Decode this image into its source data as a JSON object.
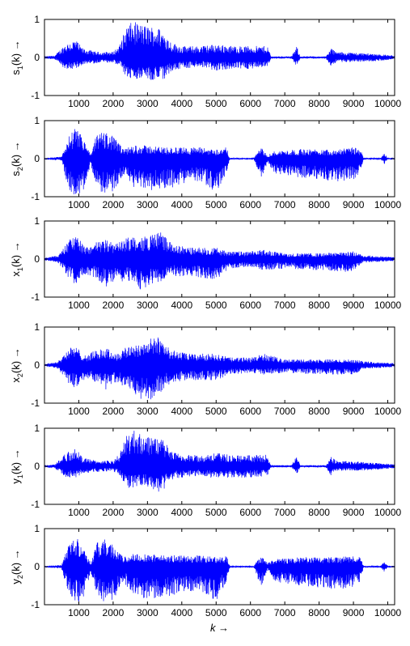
{
  "chart_data": [
    {
      "type": "line",
      "ylabel": "s1(k) →",
      "ylabel_base": "s",
      "ylabel_sub": "1",
      "ylabel_rest": "(k) →",
      "xlim": [
        0,
        10200
      ],
      "ylim": [
        -1,
        1
      ],
      "xticks": [
        1000,
        2000,
        3000,
        4000,
        5000,
        6000,
        7000,
        8000,
        9000,
        10000
      ],
      "xtick_labels": [
        "1000",
        "2000",
        "3000",
        "4000",
        "5000",
        "6000",
        "7000",
        "8000",
        "9000",
        "10000"
      ],
      "yticks": [
        -1,
        0,
        1
      ],
      "ytick_labels": [
        "-1",
        "0",
        "1"
      ],
      "grid": false,
      "color": "#0000ff",
      "envelope": [
        {
          "k": 0,
          "up": 0.03,
          "lo": -0.03
        },
        {
          "k": 300,
          "up": 0.05,
          "lo": -0.05
        },
        {
          "k": 600,
          "up": 0.35,
          "lo": -0.3
        },
        {
          "k": 900,
          "up": 0.48,
          "lo": -0.3
        },
        {
          "k": 1100,
          "up": 0.25,
          "lo": -0.2
        },
        {
          "k": 1500,
          "up": 0.15,
          "lo": -0.15
        },
        {
          "k": 2000,
          "up": 0.15,
          "lo": -0.13
        },
        {
          "k": 2200,
          "up": 0.35,
          "lo": -0.25
        },
        {
          "k": 2400,
          "up": 0.85,
          "lo": -0.55
        },
        {
          "k": 2600,
          "up": 0.95,
          "lo": -0.6
        },
        {
          "k": 2900,
          "up": 0.85,
          "lo": -0.5
        },
        {
          "k": 3300,
          "up": 0.8,
          "lo": -0.7
        },
        {
          "k": 3500,
          "up": 0.65,
          "lo": -0.6
        },
        {
          "k": 3700,
          "up": 0.4,
          "lo": -0.35
        },
        {
          "k": 4000,
          "up": 0.3,
          "lo": -0.3
        },
        {
          "k": 4500,
          "up": 0.3,
          "lo": -0.25
        },
        {
          "k": 5000,
          "up": 0.35,
          "lo": -0.35
        },
        {
          "k": 5500,
          "up": 0.3,
          "lo": -0.3
        },
        {
          "k": 6000,
          "up": 0.3,
          "lo": -0.3
        },
        {
          "k": 6500,
          "up": 0.3,
          "lo": -0.25
        },
        {
          "k": 6600,
          "up": 0.03,
          "lo": -0.03
        },
        {
          "k": 7200,
          "up": 0.03,
          "lo": -0.03
        },
        {
          "k": 7350,
          "up": 0.3,
          "lo": -0.25
        },
        {
          "k": 7450,
          "up": 0.03,
          "lo": -0.03
        },
        {
          "k": 8200,
          "up": 0.03,
          "lo": -0.03
        },
        {
          "k": 8350,
          "up": 0.25,
          "lo": -0.25
        },
        {
          "k": 8500,
          "up": 0.15,
          "lo": -0.12
        },
        {
          "k": 9000,
          "up": 0.13,
          "lo": -0.12
        },
        {
          "k": 9600,
          "up": 0.1,
          "lo": -0.1
        },
        {
          "k": 10200,
          "up": 0.05,
          "lo": -0.05
        }
      ]
    },
    {
      "type": "line",
      "ylabel": "s2(k) →",
      "ylabel_base": "s",
      "ylabel_sub": "2",
      "ylabel_rest": "(k) →",
      "xlim": [
        0,
        10200
      ],
      "ylim": [
        -1,
        1
      ],
      "xticks": [
        1000,
        2000,
        3000,
        4000,
        5000,
        6000,
        7000,
        8000,
        9000,
        10000
      ],
      "xtick_labels": [
        "1000",
        "2000",
        "3000",
        "4000",
        "5000",
        "6000",
        "7000",
        "8000",
        "9000",
        "10000"
      ],
      "yticks": [
        -1,
        0,
        1
      ],
      "ytick_labels": [
        "-1",
        "0",
        "1"
      ],
      "grid": false,
      "color": "#0000ff",
      "envelope": [
        {
          "k": 0,
          "up": 0.02,
          "lo": -0.02
        },
        {
          "k": 500,
          "up": 0.05,
          "lo": -0.05
        },
        {
          "k": 700,
          "up": 0.6,
          "lo": -0.8
        },
        {
          "k": 900,
          "up": 0.8,
          "lo": -1.0
        },
        {
          "k": 1100,
          "up": 0.6,
          "lo": -0.95
        },
        {
          "k": 1350,
          "up": 0.1,
          "lo": -0.15
        },
        {
          "k": 1500,
          "up": 0.6,
          "lo": -0.7
        },
        {
          "k": 1700,
          "up": 0.75,
          "lo": -0.95
        },
        {
          "k": 2000,
          "up": 0.6,
          "lo": -0.9
        },
        {
          "k": 2300,
          "up": 0.25,
          "lo": -0.4
        },
        {
          "k": 2600,
          "up": 0.35,
          "lo": -0.75
        },
        {
          "k": 3000,
          "up": 0.35,
          "lo": -0.85
        },
        {
          "k": 3500,
          "up": 0.3,
          "lo": -0.8
        },
        {
          "k": 4000,
          "up": 0.3,
          "lo": -0.7
        },
        {
          "k": 4500,
          "up": 0.3,
          "lo": -0.6
        },
        {
          "k": 5000,
          "up": 0.25,
          "lo": -0.9
        },
        {
          "k": 5300,
          "up": 0.3,
          "lo": -0.4
        },
        {
          "k": 5400,
          "up": 0.02,
          "lo": -0.02
        },
        {
          "k": 6100,
          "up": 0.02,
          "lo": -0.02
        },
        {
          "k": 6300,
          "up": 0.3,
          "lo": -0.55
        },
        {
          "k": 6500,
          "up": 0.1,
          "lo": -0.1
        },
        {
          "k": 6700,
          "up": 0.2,
          "lo": -0.4
        },
        {
          "k": 7500,
          "up": 0.25,
          "lo": -0.5
        },
        {
          "k": 8500,
          "up": 0.25,
          "lo": -0.6
        },
        {
          "k": 9000,
          "up": 0.3,
          "lo": -0.55
        },
        {
          "k": 9200,
          "up": 0.25,
          "lo": -0.4
        },
        {
          "k": 9300,
          "up": 0.02,
          "lo": -0.02
        },
        {
          "k": 9800,
          "up": 0.02,
          "lo": -0.02
        },
        {
          "k": 9900,
          "up": 0.15,
          "lo": -0.15
        },
        {
          "k": 10000,
          "up": 0.02,
          "lo": -0.02
        },
        {
          "k": 10200,
          "up": 0.02,
          "lo": -0.02
        }
      ]
    },
    {
      "type": "line",
      "ylabel": "x1(k) →",
      "ylabel_base": "x",
      "ylabel_sub": "1",
      "ylabel_rest": "(k) →",
      "xlim": [
        0,
        10200
      ],
      "ylim": [
        -1,
        1
      ],
      "xticks": [
        1000,
        2000,
        3000,
        4000,
        5000,
        6000,
        7000,
        8000,
        9000,
        10000
      ],
      "xtick_labels": [
        "1000",
        "2000",
        "3000",
        "4000",
        "5000",
        "6000",
        "7000",
        "8000",
        "9000",
        "10000"
      ],
      "yticks": [
        -1,
        0,
        1
      ],
      "ytick_labels": [
        "-1",
        "0",
        "1"
      ],
      "grid": false,
      "color": "#0000ff",
      "envelope": [
        {
          "k": 0,
          "up": 0.03,
          "lo": -0.03
        },
        {
          "k": 400,
          "up": 0.1,
          "lo": -0.1
        },
        {
          "k": 700,
          "up": 0.5,
          "lo": -0.5
        },
        {
          "k": 900,
          "up": 0.65,
          "lo": -0.7
        },
        {
          "k": 1200,
          "up": 0.3,
          "lo": -0.4
        },
        {
          "k": 1500,
          "up": 0.45,
          "lo": -0.5
        },
        {
          "k": 1800,
          "up": 0.5,
          "lo": -0.75
        },
        {
          "k": 2100,
          "up": 0.4,
          "lo": -0.6
        },
        {
          "k": 2500,
          "up": 0.6,
          "lo": -0.6
        },
        {
          "k": 2800,
          "up": 0.55,
          "lo": -0.85
        },
        {
          "k": 3100,
          "up": 0.65,
          "lo": -0.7
        },
        {
          "k": 3400,
          "up": 0.75,
          "lo": -0.6
        },
        {
          "k": 3700,
          "up": 0.4,
          "lo": -0.45
        },
        {
          "k": 4200,
          "up": 0.3,
          "lo": -0.45
        },
        {
          "k": 5000,
          "up": 0.3,
          "lo": -0.55
        },
        {
          "k": 5400,
          "up": 0.2,
          "lo": -0.25
        },
        {
          "k": 6000,
          "up": 0.2,
          "lo": -0.2
        },
        {
          "k": 6400,
          "up": 0.25,
          "lo": -0.3
        },
        {
          "k": 7000,
          "up": 0.15,
          "lo": -0.25
        },
        {
          "k": 8000,
          "up": 0.15,
          "lo": -0.3
        },
        {
          "k": 9000,
          "up": 0.2,
          "lo": -0.35
        },
        {
          "k": 9300,
          "up": 0.1,
          "lo": -0.1
        },
        {
          "k": 10200,
          "up": 0.05,
          "lo": -0.05
        }
      ]
    },
    {
      "type": "line",
      "ylabel": "x2(k) →",
      "ylabel_base": "x",
      "ylabel_sub": "2",
      "ylabel_rest": "(k) →",
      "xlim": [
        0,
        10200
      ],
      "ylim": [
        -1,
        1
      ],
      "xticks": [
        1000,
        2000,
        3000,
        4000,
        5000,
        6000,
        7000,
        8000,
        9000,
        10000
      ],
      "xtick_labels": [
        "1000",
        "2000",
        "3000",
        "4000",
        "5000",
        "6000",
        "7000",
        "8000",
        "9000",
        "10000"
      ],
      "yticks": [
        -1,
        0,
        1
      ],
      "ytick_labels": [
        "-1",
        "0",
        "1"
      ],
      "grid": false,
      "color": "#0000ff",
      "envelope": [
        {
          "k": 0,
          "up": 0.03,
          "lo": -0.03
        },
        {
          "k": 400,
          "up": 0.1,
          "lo": -0.1
        },
        {
          "k": 700,
          "up": 0.45,
          "lo": -0.5
        },
        {
          "k": 900,
          "up": 0.5,
          "lo": -0.6
        },
        {
          "k": 1200,
          "up": 0.25,
          "lo": -0.35
        },
        {
          "k": 1500,
          "up": 0.4,
          "lo": -0.45
        },
        {
          "k": 1800,
          "up": 0.45,
          "lo": -0.65
        },
        {
          "k": 2100,
          "up": 0.3,
          "lo": -0.45
        },
        {
          "k": 2500,
          "up": 0.55,
          "lo": -0.65
        },
        {
          "k": 2800,
          "up": 0.6,
          "lo": -0.95
        },
        {
          "k": 3100,
          "up": 0.7,
          "lo": -0.9
        },
        {
          "k": 3400,
          "up": 0.75,
          "lo": -0.7
        },
        {
          "k": 3700,
          "up": 0.4,
          "lo": -0.45
        },
        {
          "k": 4200,
          "up": 0.3,
          "lo": -0.4
        },
        {
          "k": 5000,
          "up": 0.3,
          "lo": -0.4
        },
        {
          "k": 5400,
          "up": 0.2,
          "lo": -0.25
        },
        {
          "k": 6000,
          "up": 0.2,
          "lo": -0.2
        },
        {
          "k": 6400,
          "up": 0.3,
          "lo": -0.25
        },
        {
          "k": 7000,
          "up": 0.15,
          "lo": -0.2
        },
        {
          "k": 8000,
          "up": 0.15,
          "lo": -0.25
        },
        {
          "k": 9000,
          "up": 0.15,
          "lo": -0.25
        },
        {
          "k": 9300,
          "up": 0.1,
          "lo": -0.1
        },
        {
          "k": 10200,
          "up": 0.05,
          "lo": -0.05
        }
      ]
    },
    {
      "type": "line",
      "ylabel": "y1(k) →",
      "ylabel_base": "y",
      "ylabel_sub": "1",
      "ylabel_rest": "(k) →",
      "xlim": [
        0,
        10200
      ],
      "ylim": [
        -1,
        1
      ],
      "xticks": [
        1000,
        2000,
        3000,
        4000,
        5000,
        6000,
        7000,
        8000,
        9000,
        10000
      ],
      "xtick_labels": [
        "1000",
        "2000",
        "3000",
        "4000",
        "5000",
        "6000",
        "7000",
        "8000",
        "9000",
        "10000"
      ],
      "yticks": [
        -1,
        0,
        1
      ],
      "ytick_labels": [
        "-1",
        "0",
        "1"
      ],
      "grid": false,
      "color": "#0000ff",
      "envelope": [
        {
          "k": 0,
          "up": 0.03,
          "lo": -0.03
        },
        {
          "k": 300,
          "up": 0.05,
          "lo": -0.05
        },
        {
          "k": 600,
          "up": 0.35,
          "lo": -0.3
        },
        {
          "k": 900,
          "up": 0.48,
          "lo": -0.3
        },
        {
          "k": 1100,
          "up": 0.25,
          "lo": -0.2
        },
        {
          "k": 1500,
          "up": 0.15,
          "lo": -0.15
        },
        {
          "k": 2000,
          "up": 0.15,
          "lo": -0.13
        },
        {
          "k": 2200,
          "up": 0.35,
          "lo": -0.25
        },
        {
          "k": 2400,
          "up": 0.85,
          "lo": -0.55
        },
        {
          "k": 2600,
          "up": 0.95,
          "lo": -0.6
        },
        {
          "k": 2900,
          "up": 0.85,
          "lo": -0.5
        },
        {
          "k": 3300,
          "up": 0.8,
          "lo": -0.7
        },
        {
          "k": 3500,
          "up": 0.65,
          "lo": -0.6
        },
        {
          "k": 3700,
          "up": 0.4,
          "lo": -0.35
        },
        {
          "k": 4000,
          "up": 0.3,
          "lo": -0.3
        },
        {
          "k": 4500,
          "up": 0.3,
          "lo": -0.25
        },
        {
          "k": 5000,
          "up": 0.35,
          "lo": -0.35
        },
        {
          "k": 5500,
          "up": 0.3,
          "lo": -0.3
        },
        {
          "k": 6000,
          "up": 0.3,
          "lo": -0.3
        },
        {
          "k": 6500,
          "up": 0.3,
          "lo": -0.25
        },
        {
          "k": 6600,
          "up": 0.03,
          "lo": -0.03
        },
        {
          "k": 7200,
          "up": 0.03,
          "lo": -0.03
        },
        {
          "k": 7350,
          "up": 0.3,
          "lo": -0.25
        },
        {
          "k": 7450,
          "up": 0.03,
          "lo": -0.03
        },
        {
          "k": 8200,
          "up": 0.03,
          "lo": -0.03
        },
        {
          "k": 8350,
          "up": 0.25,
          "lo": -0.25
        },
        {
          "k": 8500,
          "up": 0.15,
          "lo": -0.12
        },
        {
          "k": 9000,
          "up": 0.13,
          "lo": -0.12
        },
        {
          "k": 9600,
          "up": 0.1,
          "lo": -0.1
        },
        {
          "k": 10200,
          "up": 0.05,
          "lo": -0.05
        }
      ]
    },
    {
      "type": "line",
      "ylabel": "y2(k) →",
      "ylabel_base": "y",
      "ylabel_sub": "2",
      "ylabel_rest": "(k) →",
      "xlabel": "k →",
      "xlim": [
        0,
        10200
      ],
      "ylim": [
        -1,
        1
      ],
      "xticks": [
        1000,
        2000,
        3000,
        4000,
        5000,
        6000,
        7000,
        8000,
        9000,
        10000
      ],
      "xtick_labels": [
        "1000",
        "2000",
        "3000",
        "4000",
        "5000",
        "6000",
        "7000",
        "8000",
        "9000",
        "10000"
      ],
      "yticks": [
        -1,
        0,
        1
      ],
      "ytick_labels": [
        "-1",
        "0",
        "1"
      ],
      "grid": false,
      "color": "#0000ff",
      "envelope": [
        {
          "k": 0,
          "up": 0.02,
          "lo": -0.02
        },
        {
          "k": 500,
          "up": 0.05,
          "lo": -0.05
        },
        {
          "k": 700,
          "up": 0.6,
          "lo": -0.8
        },
        {
          "k": 900,
          "up": 0.8,
          "lo": -1.0
        },
        {
          "k": 1100,
          "up": 0.6,
          "lo": -0.95
        },
        {
          "k": 1350,
          "up": 0.1,
          "lo": -0.15
        },
        {
          "k": 1500,
          "up": 0.6,
          "lo": -0.7
        },
        {
          "k": 1700,
          "up": 0.75,
          "lo": -0.95
        },
        {
          "k": 2000,
          "up": 0.6,
          "lo": -0.9
        },
        {
          "k": 2300,
          "up": 0.25,
          "lo": -0.4
        },
        {
          "k": 2600,
          "up": 0.35,
          "lo": -0.75
        },
        {
          "k": 3000,
          "up": 0.35,
          "lo": -0.85
        },
        {
          "k": 3500,
          "up": 0.3,
          "lo": -0.8
        },
        {
          "k": 4000,
          "up": 0.3,
          "lo": -0.7
        },
        {
          "k": 4500,
          "up": 0.3,
          "lo": -0.6
        },
        {
          "k": 5000,
          "up": 0.25,
          "lo": -0.9
        },
        {
          "k": 5300,
          "up": 0.3,
          "lo": -0.4
        },
        {
          "k": 5400,
          "up": 0.02,
          "lo": -0.02
        },
        {
          "k": 6100,
          "up": 0.02,
          "lo": -0.02
        },
        {
          "k": 6300,
          "up": 0.3,
          "lo": -0.55
        },
        {
          "k": 6500,
          "up": 0.1,
          "lo": -0.1
        },
        {
          "k": 6700,
          "up": 0.2,
          "lo": -0.4
        },
        {
          "k": 7500,
          "up": 0.25,
          "lo": -0.5
        },
        {
          "k": 8500,
          "up": 0.25,
          "lo": -0.6
        },
        {
          "k": 9000,
          "up": 0.3,
          "lo": -0.55
        },
        {
          "k": 9200,
          "up": 0.25,
          "lo": -0.4
        },
        {
          "k": 9300,
          "up": 0.02,
          "lo": -0.02
        },
        {
          "k": 9800,
          "up": 0.02,
          "lo": -0.02
        },
        {
          "k": 9900,
          "up": 0.15,
          "lo": -0.15
        },
        {
          "k": 10000,
          "up": 0.02,
          "lo": -0.02
        },
        {
          "k": 10200,
          "up": 0.02,
          "lo": -0.02
        }
      ]
    }
  ]
}
